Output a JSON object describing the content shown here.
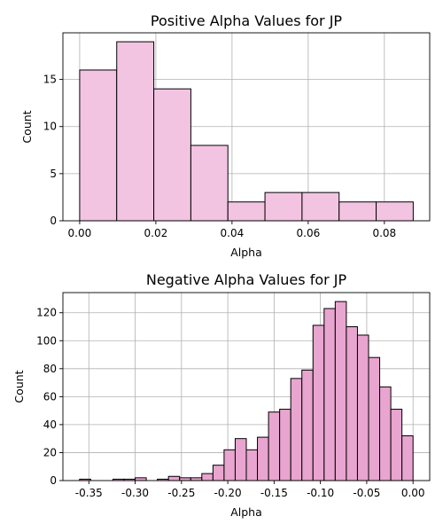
{
  "chart_data": [
    {
      "type": "bar",
      "title": "Positive Alpha Values for JP",
      "xlabel": "Alpha",
      "ylabel": "Count",
      "xlim": [
        -0.0044,
        0.0919
      ],
      "ylim": [
        0,
        19.95
      ],
      "grid": true,
      "color": "#f3c4e2",
      "bin_start": 0.0,
      "bin_width": 0.00973,
      "values": [
        16,
        19,
        14,
        8,
        2,
        3,
        3,
        2,
        2
      ],
      "xticks": [
        0.0,
        0.02,
        0.04,
        0.06,
        0.08
      ],
      "xtick_labels": [
        "0.00",
        "0.02",
        "0.04",
        "0.06",
        "0.08"
      ],
      "yticks": [
        0,
        5,
        10,
        15
      ],
      "ytick_labels": [
        "0",
        "5",
        "10",
        "15"
      ]
    },
    {
      "type": "bar",
      "title": "Negative Alpha Values for JP",
      "xlabel": "Alpha",
      "ylabel": "Count",
      "xlim": [
        -0.378,
        0.018
      ],
      "ylim": [
        0,
        134.4
      ],
      "grid": true,
      "color": "#e8a5cf",
      "bin_start": -0.36,
      "bin_width": 0.012,
      "values": [
        1,
        0,
        0,
        1,
        1,
        2,
        0,
        1,
        3,
        2,
        2,
        5,
        11,
        22,
        30,
        22,
        31,
        49,
        51,
        73,
        79,
        111,
        123,
        128,
        110,
        104,
        88,
        67,
        51,
        32
      ],
      "xticks": [
        -0.35,
        -0.3,
        -0.25,
        -0.2,
        -0.15,
        -0.1,
        -0.05,
        0.0
      ],
      "xtick_labels": [
        "-0.35",
        "-0.30",
        "-0.25",
        "-0.20",
        "-0.15",
        "-0.10",
        "-0.05",
        "0.00"
      ],
      "yticks": [
        0,
        20,
        40,
        60,
        80,
        100,
        120
      ],
      "ytick_labels": [
        "0",
        "20",
        "40",
        "60",
        "80",
        "100",
        "120"
      ]
    }
  ]
}
